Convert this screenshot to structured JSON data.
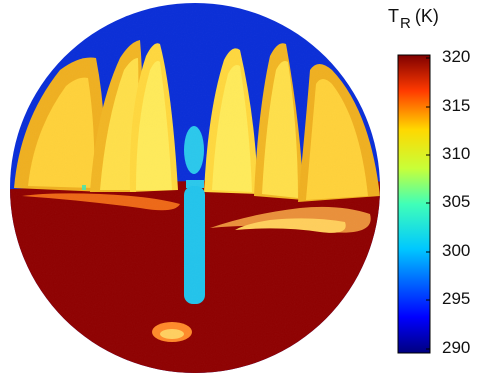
{
  "colorbar": {
    "title_symbol": "T",
    "title_subscript": "R",
    "title_unit": "(K)",
    "min": 290,
    "max": 320,
    "ticks": [
      "320",
      "315",
      "310",
      "305",
      "300",
      "295",
      "290"
    ],
    "colormap": "jet"
  },
  "image": {
    "description_kind": "fisheye thermal image",
    "colors": {
      "sky": "#0a2ed8",
      "ground": "#8f0000",
      "facade_bright": "#ffe34a",
      "facade_dim": "#f2b21f",
      "windows": "#48e6a6",
      "pole": "#22c8ee",
      "shadow": "#e83a0c"
    }
  }
}
